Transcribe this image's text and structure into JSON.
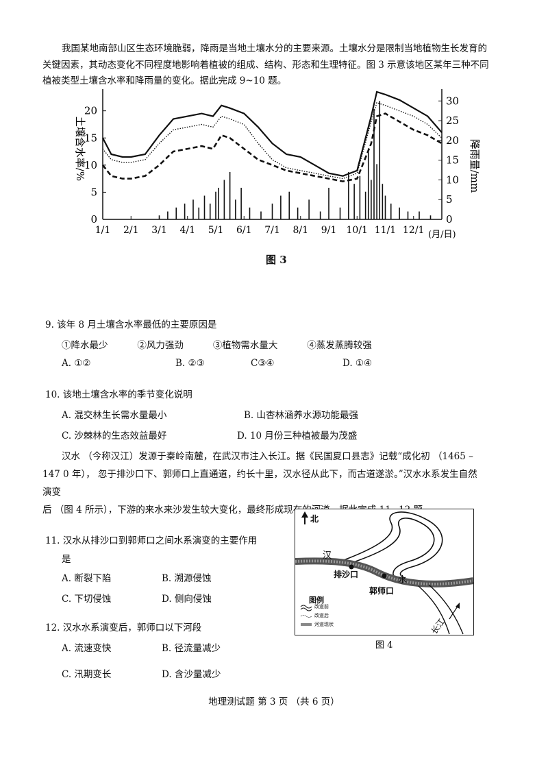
{
  "intro1": {
    "line1": "我国某地南部山区生态环境脆弱，降雨是当地土壤水分的主要来源。土壤水分是限制当地植物生长发育的",
    "line2": "关键因素，其动态变化不同程度地影响着植被的组成、结构、形态和生理特征。图 3 示意该地区某年三种不同",
    "line3": "植被类型土壤含水率和降雨量的变化。据此完成  9~10 题。"
  },
  "figure3": {
    "caption": "图 3",
    "ylabel_left": "土壤含水率/%",
    "ylabel_right": "降雨量/mm",
    "x_unit": "(月/日)"
  },
  "chart_data": {
    "type": "line",
    "x_ticks": [
      "1/1",
      "2/1",
      "3/1",
      "4/1",
      "5/1",
      "6/1",
      "7/1",
      "8/1",
      "9/1",
      "10/1",
      "11/1",
      "12/1"
    ],
    "y_left_ticks": [
      0,
      5,
      10,
      15,
      20
    ],
    "y_right_ticks": [
      0,
      5,
      10,
      15,
      20,
      25,
      30
    ],
    "ylim_left": [
      0,
      24
    ],
    "ylim_right": [
      0,
      33
    ],
    "series": [
      {
        "style": "solid",
        "x": [
          0,
          0.3,
          0.7,
          1,
          1.5,
          2,
          2.5,
          3,
          3.5,
          3.9,
          4.2,
          4.5,
          5,
          5.5,
          6,
          6.5,
          7,
          7.5,
          8,
          8.5,
          9,
          9.5,
          9.7,
          10,
          10.5,
          11,
          11.5,
          12
        ],
        "y": [
          15,
          12,
          11.5,
          11.5,
          12,
          15.5,
          18.5,
          19,
          19.5,
          19,
          21,
          20.5,
          19.5,
          17,
          14,
          12,
          11.5,
          10,
          8.5,
          8,
          9,
          19,
          23.5,
          23,
          22,
          20.5,
          19,
          16
        ]
      },
      {
        "style": "dotted",
        "x": [
          0,
          0.3,
          0.7,
          1,
          1.5,
          2,
          2.5,
          3,
          3.5,
          3.9,
          4.2,
          4.5,
          5,
          5.5,
          6,
          6.5,
          7,
          7.5,
          8,
          8.5,
          9,
          9.5,
          9.7,
          10,
          10.5,
          11,
          11.5,
          12
        ],
        "y": [
          13,
          11,
          10.5,
          10.5,
          11,
          14,
          16.5,
          17,
          17.5,
          17,
          19,
          18.5,
          17.5,
          14,
          11,
          9.5,
          9,
          8.5,
          8,
          7.5,
          8.5,
          18,
          21.5,
          21,
          20,
          19,
          17.5,
          15
        ]
      },
      {
        "style": "dashed",
        "x": [
          0,
          0.3,
          0.7,
          1,
          1.5,
          2,
          2.5,
          3,
          3.5,
          3.9,
          4.2,
          4.5,
          5,
          5.5,
          6,
          6.5,
          7,
          7.5,
          8,
          8.5,
          9,
          9.5,
          9.7,
          10,
          10.5,
          11,
          11.5,
          12
        ],
        "y": [
          10,
          8,
          7.5,
          7.5,
          8,
          10,
          12.5,
          13,
          13.5,
          13,
          15.5,
          15,
          13,
          11,
          10,
          9,
          8.5,
          8,
          7.5,
          7,
          7.5,
          14,
          19,
          19.5,
          18,
          16.5,
          15.5,
          14
        ]
      }
    ],
    "rainfall_bars": {
      "x": [
        2.0,
        2.3,
        2.6,
        2.9,
        3.2,
        3.4,
        3.6,
        3.8,
        4.0,
        4.1,
        4.3,
        4.5,
        4.7,
        4.9,
        5.2,
        5.6,
        6.0,
        6.3,
        6.6,
        6.9,
        7.3,
        7.7,
        8.0,
        8.4,
        8.7,
        8.9,
        9.1,
        9.3,
        9.4,
        9.5,
        9.6,
        9.7,
        9.8,
        9.9,
        10.0,
        10.2,
        10.5,
        10.8,
        11.2,
        11.6
      ],
      "y": [
        1,
        2,
        3,
        4,
        5,
        3,
        6,
        4,
        7,
        8,
        10,
        12,
        5,
        8,
        3,
        2,
        4,
        6,
        7,
        3,
        5,
        2,
        8,
        3,
        12,
        9,
        11,
        7,
        18,
        10,
        28,
        14,
        30,
        9,
        6,
        4,
        3,
        2,
        2,
        1
      ]
    }
  },
  "q9": {
    "stem": "9.   该年  8 月土壤含水率最低的主要原因是",
    "opts": "①降水最少          ②风力强劲          ③植物需水量大          ④蒸发蒸腾较强",
    "A": "A.  ①②",
    "B": "B.  ②③",
    "C": "C③④",
    "D": "D.  ①④"
  },
  "q10": {
    "stem": "10.   该地土壤含水率的季节变化说明",
    "A": "A.  混交林生长需水量最小",
    "B": "B.  山杏林涵养水源功能最强",
    "C": "C.  沙棘林的生态效益最好",
    "D": "D.  10 月份三种植被最为茂盛"
  },
  "intro2": {
    "line1": "汉水 （今称汉江）发源于秦岭南麓，在武汉市注入长江。据《民国夏口县志》记载“成化初  （1465  –",
    "line2": "147 0 年），  忽于排沙口下、郭师口上直通道，约长十里，汉水径从此下，而古道遂淤。”汉水水系发生自然",
    "line3": "演变",
    "line4": "后  （图  4 所示），下游的来水来沙发生较大变化，最终形成现在的河道。据此完成  11~12 题。"
  },
  "figure4": {
    "caption": "图 4",
    "north": "北",
    "label_han": "汉",
    "label_shui": "水",
    "label_paishakou": "排沙口",
    "label_guoshikou": "郭师口",
    "label_changjiang": "长江",
    "legend_title": "图例",
    "legend1": "改道前",
    "legend2": "改道后",
    "legend3": "河道现状"
  },
  "q11": {
    "stem1": "11.   汉水从排沙口到郭师口之间水系演变的主要作用",
    "stem2": "是",
    "A": "A.  断裂下陷",
    "B": "B.  溯源侵蚀",
    "C": "C.  下切侵蚀",
    "D": "D.  侧向侵蚀"
  },
  "q12": {
    "stem": "12.   汉水水系演变后，郭师口以下河段",
    "A": "A.  流速变快",
    "B": "B.  径流量减少",
    "C": "C.  汛期变长",
    "D": "D.  含沙量减少"
  },
  "footer": "地理测试题  第  3 页  （共  6 页）"
}
